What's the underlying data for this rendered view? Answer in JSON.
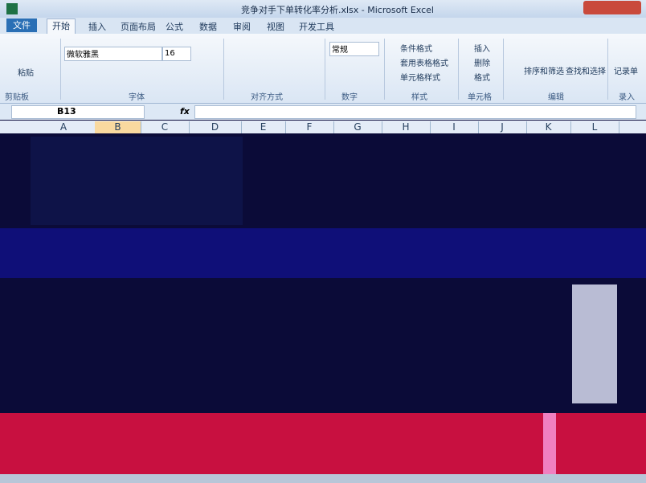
{
  "window": {
    "title": "竞争对手下单转化率分析.xlsx - Microsoft Excel"
  },
  "tabs": [
    "文件",
    "开始",
    "插入",
    "页面布局",
    "公式",
    "数据",
    "审阅",
    "视图",
    "开发工具"
  ],
  "ribbon": {
    "paste": "粘贴",
    "clipboard": "剪贴板",
    "font_name": "微软雅黑",
    "font_size": "16",
    "font": "字体",
    "alignment": "对齐方式",
    "number_format": "常规",
    "number": "数字",
    "conditional_format": "条件格式",
    "table_format": "套用表格格式",
    "cell_style": "单元格样式",
    "styles": "样式",
    "insert": "插入",
    "delete": "删除",
    "format": "格式",
    "cells": "单元格",
    "sort_filter": "排序和筛选",
    "find_select": "查找和选择",
    "editing": "编辑",
    "record_form": "记录单",
    "entry": "录入"
  },
  "formula_bar": {
    "name_box": "B13",
    "fx": "fx"
  },
  "columns": [
    "A",
    "B",
    "C",
    "D",
    "E",
    "F",
    "G",
    "H",
    "I",
    "J",
    "K",
    "L"
  ]
}
